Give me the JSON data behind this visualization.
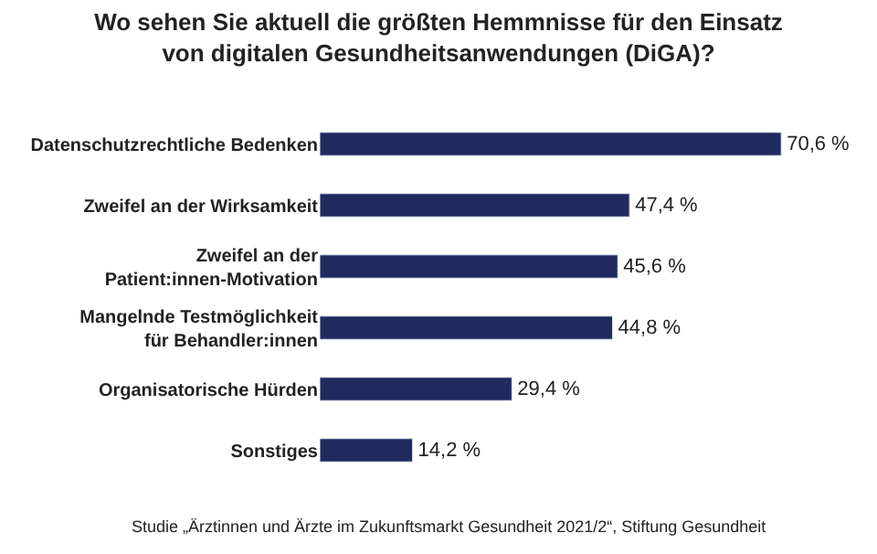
{
  "chart_data": {
    "type": "bar",
    "orientation": "horizontal",
    "title": "Wo sehen Sie aktuell die größten Hemmnisse für den Einsatz\nvon digitalen Gesundheitsanwendungen (DiGA)?",
    "categories": [
      "Datenschutzrechtliche Bedenken",
      "Zweifel an der Wirksamkeit",
      "Zweifel an der\nPatient:innen-Motivation",
      "Mangelnde Testmöglichkeit\nfür Behandler:innen",
      "Organisatorische Hürden",
      "Sonstiges"
    ],
    "values": [
      70.6,
      47.4,
      45.6,
      44.8,
      29.4,
      14.2
    ],
    "value_labels": [
      "70,6 %",
      "47,4 %",
      "45,6 %",
      "44,8 %",
      "29,4 %",
      "14,2 %"
    ],
    "color": "#1f2b5e",
    "annotations": [
      "Studie „Ärztinnen und Ärzte im Zukunftsmarkt Gesundheit 2021/2“, Stiftung Gesundheit"
    ],
    "legend": false
  }
}
